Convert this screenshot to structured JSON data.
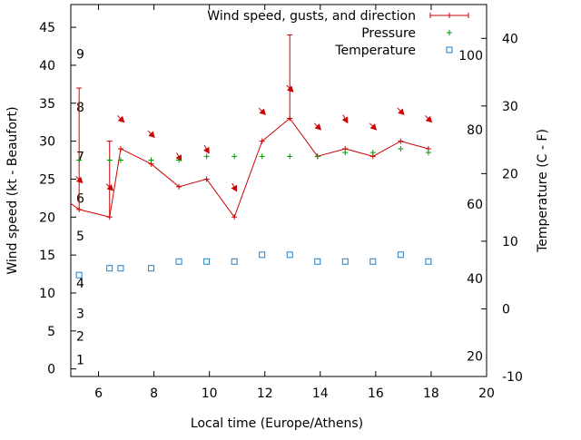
{
  "chart_data": {
    "type": "line",
    "xlabel": "Local time (Europe/Athens)",
    "ylabel": "Wind speed (kt - Beaufort)",
    "y2label": "Temperature (C - F)",
    "xlim": [
      5,
      20
    ],
    "ylim": [
      -1,
      48
    ],
    "y2lim": [
      -10,
      45
    ],
    "x_ticks": [
      6,
      8,
      10,
      12,
      14,
      16,
      18,
      20
    ],
    "y_ticks": [
      0,
      5,
      10,
      15,
      20,
      25,
      30,
      35,
      40,
      45
    ],
    "y2_ticks": [
      -10,
      0,
      10,
      20,
      30,
      40
    ],
    "beaufort_labels": [
      {
        "text": "1",
        "y": 1.2
      },
      {
        "text": "2",
        "y": 4.3
      },
      {
        "text": "3",
        "y": 7.3
      },
      {
        "text": "4",
        "y": 11.3
      },
      {
        "text": "5",
        "y": 17.5
      },
      {
        "text": "6",
        "y": 22.5
      },
      {
        "text": "7",
        "y": 28.0
      },
      {
        "text": "8",
        "y": 34.5
      },
      {
        "text": "9",
        "y": 41.5
      }
    ],
    "fahrenheit_labels": [
      {
        "text": "20",
        "y2": -7
      },
      {
        "text": "40",
        "y2": 4.5
      },
      {
        "text": "60",
        "y2": 15.5
      },
      {
        "text": "80",
        "y2": 26.5
      },
      {
        "text": "100",
        "y2": 37.5
      }
    ],
    "legend": {
      "position": "top-right",
      "wind": "Wind speed, gusts, and direction",
      "pressure": "Pressure",
      "temperature": "Temperature"
    },
    "colors": {
      "wind": "#cc0000",
      "pressure": "#009900",
      "temperature": "#1f7fc8"
    },
    "wind_series": [
      {
        "x": 5.3,
        "speed": 21,
        "gust": 37,
        "dir_deg": 135
      },
      {
        "x": 6.4,
        "speed": 20,
        "gust": 30,
        "dir_deg": 135
      },
      {
        "x": 6.8,
        "speed": 29,
        "gust": 29,
        "dir_deg": 135
      },
      {
        "x": 7.9,
        "speed": 27,
        "gust": 27,
        "dir_deg": 135
      },
      {
        "x": 8.9,
        "speed": 24,
        "gust": 24,
        "dir_deg": 150
      },
      {
        "x": 9.9,
        "speed": 25,
        "gust": 25,
        "dir_deg": 150
      },
      {
        "x": 10.9,
        "speed": 20,
        "gust": 20,
        "dir_deg": 150
      },
      {
        "x": 11.9,
        "speed": 30,
        "gust": 30,
        "dir_deg": 135
      },
      {
        "x": 12.9,
        "speed": 33,
        "gust": 44,
        "dir_deg": 135
      },
      {
        "x": 13.9,
        "speed": 28,
        "gust": 28,
        "dir_deg": 135
      },
      {
        "x": 14.9,
        "speed": 29,
        "gust": 29,
        "dir_deg": 150
      },
      {
        "x": 15.9,
        "speed": 28,
        "gust": 28,
        "dir_deg": 135
      },
      {
        "x": 16.9,
        "speed": 30,
        "gust": 30,
        "dir_deg": 135
      },
      {
        "x": 17.9,
        "speed": 29,
        "gust": 29,
        "dir_deg": 135
      }
    ],
    "pressure_series": [
      {
        "x": 5.3,
        "y": 27.5
      },
      {
        "x": 6.4,
        "y": 27.5
      },
      {
        "x": 6.8,
        "y": 27.5
      },
      {
        "x": 7.9,
        "y": 27.5
      },
      {
        "x": 8.9,
        "y": 27.5
      },
      {
        "x": 9.9,
        "y": 28
      },
      {
        "x": 10.9,
        "y": 28
      },
      {
        "x": 11.9,
        "y": 28
      },
      {
        "x": 12.9,
        "y": 28
      },
      {
        "x": 13.9,
        "y": 28
      },
      {
        "x": 14.9,
        "y": 28.5
      },
      {
        "x": 15.9,
        "y": 28.5
      },
      {
        "x": 16.9,
        "y": 29
      },
      {
        "x": 17.9,
        "y": 28.5
      }
    ],
    "temperature_series": [
      {
        "x": 5.3,
        "y": 5
      },
      {
        "x": 6.4,
        "y": 6
      },
      {
        "x": 6.8,
        "y": 6
      },
      {
        "x": 7.9,
        "y": 6
      },
      {
        "x": 8.9,
        "y": 7
      },
      {
        "x": 9.9,
        "y": 7
      },
      {
        "x": 10.9,
        "y": 7
      },
      {
        "x": 11.9,
        "y": 8
      },
      {
        "x": 12.9,
        "y": 8
      },
      {
        "x": 13.9,
        "y": 7
      },
      {
        "x": 14.9,
        "y": 7
      },
      {
        "x": 15.9,
        "y": 7
      },
      {
        "x": 16.9,
        "y": 8
      },
      {
        "x": 17.9,
        "y": 7
      }
    ]
  }
}
